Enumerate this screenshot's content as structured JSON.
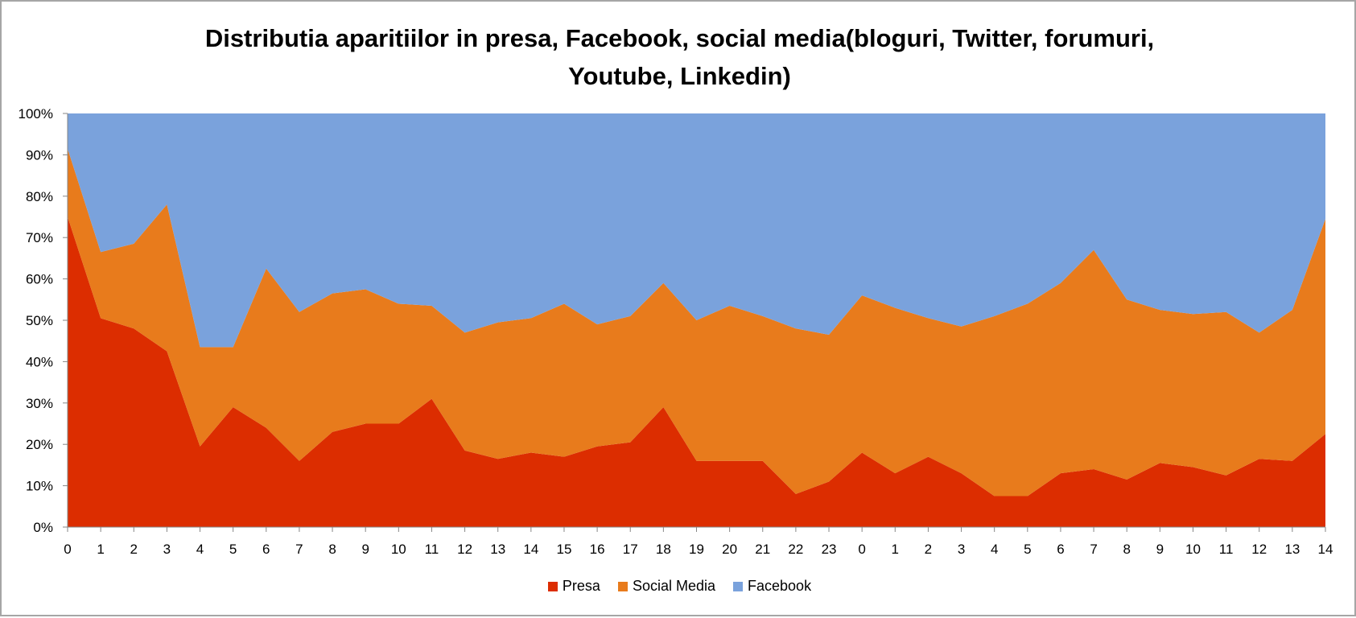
{
  "chart_data": {
    "type": "area",
    "stacked": "percent",
    "title_lines": [
      "Distributia aparitiilor in presa, Facebook,  social media(bloguri, Twitter, forumuri,",
      "Youtube, Linkedin)"
    ],
    "xlabel": "",
    "ylabel": "",
    "ylim": [
      0,
      100
    ],
    "yticks": [
      "0%",
      "10%",
      "20%",
      "30%",
      "40%",
      "50%",
      "60%",
      "70%",
      "80%",
      "90%",
      "100%"
    ],
    "categories": [
      "0",
      "1",
      "2",
      "3",
      "4",
      "5",
      "6",
      "7",
      "8",
      "9",
      "10",
      "11",
      "12",
      "13",
      "14",
      "15",
      "16",
      "17",
      "18",
      "19",
      "20",
      "21",
      "22",
      "23",
      "0",
      "1",
      "2",
      "3",
      "4",
      "5",
      "6",
      "7",
      "8",
      "9",
      "10",
      "11",
      "12",
      "13",
      "14"
    ],
    "grid": false,
    "legend_position": "bottom",
    "series": [
      {
        "name": "Presa",
        "color": "#dc2d00",
        "values": [
          75,
          50.5,
          48,
          42.5,
          19.5,
          29,
          24,
          16,
          23,
          25,
          25,
          31,
          18.5,
          16.5,
          18,
          17,
          19.5,
          20.5,
          29,
          16,
          16,
          16,
          8,
          11,
          18,
          13,
          17,
          13,
          7.5,
          7.5,
          13,
          14,
          11.5,
          15.5,
          14.5,
          12.5,
          16.5,
          16,
          22.5
        ]
      },
      {
        "name": "Social Media",
        "color": "#e87b1c",
        "values": [
          16.5,
          16,
          20.5,
          35.5,
          24,
          14.5,
          38.5,
          36,
          33.5,
          32.5,
          29,
          22.5,
          28.5,
          33,
          32.5,
          37,
          29.5,
          30.5,
          30,
          34,
          37.5,
          35,
          40,
          35.5,
          38,
          40,
          33.5,
          35.5,
          43.5,
          46.5,
          46,
          53,
          43.5,
          37,
          37,
          39.5,
          30.5,
          36.5,
          52
        ]
      },
      {
        "name": "Facebook",
        "color": "#7aa2dc",
        "values": [
          8.5,
          33.5,
          31.5,
          22,
          56.5,
          56.5,
          37.5,
          48,
          43.5,
          42.5,
          46,
          46.5,
          53,
          50.5,
          49.5,
          46,
          51,
          49,
          41,
          50,
          46.5,
          49,
          52,
          53.5,
          44,
          47,
          49.5,
          51.5,
          49,
          46,
          41,
          33,
          45,
          47.5,
          48.5,
          48,
          53,
          47.5,
          25.5
        ]
      }
    ]
  }
}
